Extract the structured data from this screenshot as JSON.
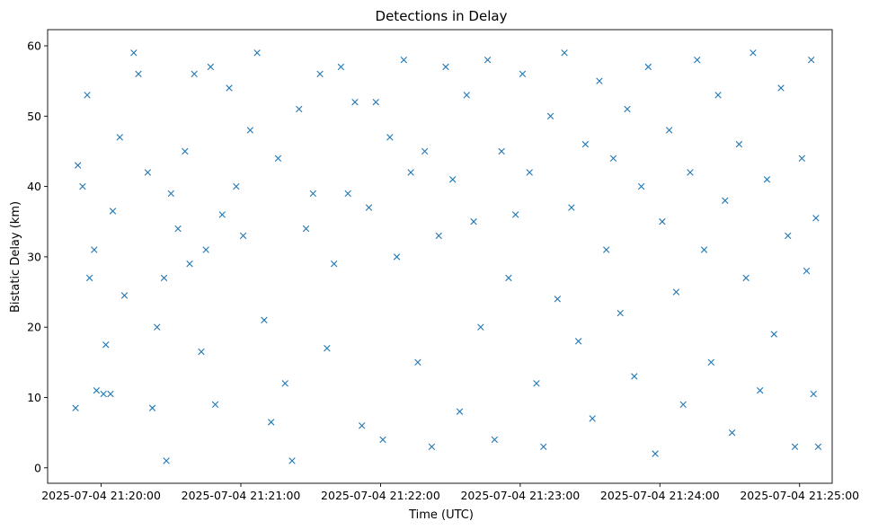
{
  "chart_data": {
    "type": "scatter",
    "title": "Detections in Delay",
    "xlabel": "Time (UTC)",
    "ylabel": "Bistatic Delay (km)",
    "marker": "x",
    "color": "#1f77b4",
    "grid": false,
    "xlim": [
      "2025-07-04 21:19:37",
      "2025-07-04 21:25:14"
    ],
    "ylim": [
      -2.2,
      62.3
    ],
    "x_ticks": [
      "2025-07-04 21:20:00",
      "2025-07-04 21:21:00",
      "2025-07-04 21:22:00",
      "2025-07-04 21:23:00",
      "2025-07-04 21:24:00",
      "2025-07-04 21:25:00"
    ],
    "y_ticks": [
      0,
      10,
      20,
      30,
      40,
      50,
      60
    ],
    "series": [
      {
        "points": [
          [
            "2025-07-04 21:19:50",
            43
          ],
          [
            "2025-07-04 21:19:52",
            40
          ],
          [
            "2025-07-04 21:19:54",
            53
          ],
          [
            "2025-07-04 21:19:55",
            27
          ],
          [
            "2025-07-04 21:19:57",
            31
          ],
          [
            "2025-07-04 21:19:49",
            8.5
          ],
          [
            "2025-07-04 21:19:58",
            11
          ],
          [
            "2025-07-04 21:20:01",
            10.5
          ],
          [
            "2025-07-04 21:20:04",
            10.5
          ],
          [
            "2025-07-04 21:20:02",
            17.5
          ],
          [
            "2025-07-04 21:20:05",
            36.5
          ],
          [
            "2025-07-04 21:20:08",
            47
          ],
          [
            "2025-07-04 21:20:10",
            24.5
          ],
          [
            "2025-07-04 21:20:14",
            59
          ],
          [
            "2025-07-04 21:20:16",
            56
          ],
          [
            "2025-07-04 21:20:20",
            42
          ],
          [
            "2025-07-04 21:20:22",
            8.5
          ],
          [
            "2025-07-04 21:20:24",
            20
          ],
          [
            "2025-07-04 21:20:27",
            27
          ],
          [
            "2025-07-04 21:20:28",
            1
          ],
          [
            "2025-07-04 21:20:30",
            39
          ],
          [
            "2025-07-04 21:20:33",
            34
          ],
          [
            "2025-07-04 21:20:36",
            45
          ],
          [
            "2025-07-04 21:20:38",
            29
          ],
          [
            "2025-07-04 21:20:40",
            56
          ],
          [
            "2025-07-04 21:20:43",
            16.5
          ],
          [
            "2025-07-04 21:20:45",
            31
          ],
          [
            "2025-07-04 21:20:47",
            57
          ],
          [
            "2025-07-04 21:20:49",
            9
          ],
          [
            "2025-07-04 21:20:52",
            36
          ],
          [
            "2025-07-04 21:20:55",
            54
          ],
          [
            "2025-07-04 21:20:58",
            40
          ],
          [
            "2025-07-04 21:21:01",
            33
          ],
          [
            "2025-07-04 21:21:04",
            48
          ],
          [
            "2025-07-04 21:21:07",
            59
          ],
          [
            "2025-07-04 21:21:10",
            21
          ],
          [
            "2025-07-04 21:21:13",
            6.5
          ],
          [
            "2025-07-04 21:21:16",
            44
          ],
          [
            "2025-07-04 21:21:19",
            12
          ],
          [
            "2025-07-04 21:21:22",
            1
          ],
          [
            "2025-07-04 21:21:25",
            51
          ],
          [
            "2025-07-04 21:21:28",
            34
          ],
          [
            "2025-07-04 21:21:31",
            39
          ],
          [
            "2025-07-04 21:21:34",
            56
          ],
          [
            "2025-07-04 21:21:37",
            17
          ],
          [
            "2025-07-04 21:21:40",
            29
          ],
          [
            "2025-07-04 21:21:43",
            57
          ],
          [
            "2025-07-04 21:21:46",
            39
          ],
          [
            "2025-07-04 21:21:49",
            52
          ],
          [
            "2025-07-04 21:21:52",
            6
          ],
          [
            "2025-07-04 21:21:55",
            37
          ],
          [
            "2025-07-04 21:21:58",
            52
          ],
          [
            "2025-07-04 21:22:01",
            4
          ],
          [
            "2025-07-04 21:22:04",
            47
          ],
          [
            "2025-07-04 21:22:07",
            30
          ],
          [
            "2025-07-04 21:22:10",
            58
          ],
          [
            "2025-07-04 21:22:13",
            42
          ],
          [
            "2025-07-04 21:22:16",
            15
          ],
          [
            "2025-07-04 21:22:19",
            45
          ],
          [
            "2025-07-04 21:22:22",
            3
          ],
          [
            "2025-07-04 21:22:25",
            33
          ],
          [
            "2025-07-04 21:22:28",
            57
          ],
          [
            "2025-07-04 21:22:31",
            41
          ],
          [
            "2025-07-04 21:22:34",
            8
          ],
          [
            "2025-07-04 21:22:37",
            53
          ],
          [
            "2025-07-04 21:22:40",
            35
          ],
          [
            "2025-07-04 21:22:43",
            20
          ],
          [
            "2025-07-04 21:22:46",
            58
          ],
          [
            "2025-07-04 21:22:49",
            4
          ],
          [
            "2025-07-04 21:22:52",
            45
          ],
          [
            "2025-07-04 21:22:55",
            27
          ],
          [
            "2025-07-04 21:22:58",
            36
          ],
          [
            "2025-07-04 21:23:01",
            56
          ],
          [
            "2025-07-04 21:23:04",
            42
          ],
          [
            "2025-07-04 21:23:07",
            12
          ],
          [
            "2025-07-04 21:23:10",
            3
          ],
          [
            "2025-07-04 21:23:13",
            50
          ],
          [
            "2025-07-04 21:23:16",
            24
          ],
          [
            "2025-07-04 21:23:19",
            59
          ],
          [
            "2025-07-04 21:23:22",
            37
          ],
          [
            "2025-07-04 21:23:25",
            18
          ],
          [
            "2025-07-04 21:23:28",
            46
          ],
          [
            "2025-07-04 21:23:31",
            7
          ],
          [
            "2025-07-04 21:23:34",
            55
          ],
          [
            "2025-07-04 21:23:37",
            31
          ],
          [
            "2025-07-04 21:23:40",
            44
          ],
          [
            "2025-07-04 21:23:43",
            22
          ],
          [
            "2025-07-04 21:23:46",
            51
          ],
          [
            "2025-07-04 21:23:49",
            13
          ],
          [
            "2025-07-04 21:23:52",
            40
          ],
          [
            "2025-07-04 21:23:55",
            57
          ],
          [
            "2025-07-04 21:23:58",
            2
          ],
          [
            "2025-07-04 21:24:01",
            35
          ],
          [
            "2025-07-04 21:24:04",
            48
          ],
          [
            "2025-07-04 21:24:07",
            25
          ],
          [
            "2025-07-04 21:24:10",
            9
          ],
          [
            "2025-07-04 21:24:13",
            42
          ],
          [
            "2025-07-04 21:24:16",
            58
          ],
          [
            "2025-07-04 21:24:19",
            31
          ],
          [
            "2025-07-04 21:24:22",
            15
          ],
          [
            "2025-07-04 21:24:25",
            53
          ],
          [
            "2025-07-04 21:24:28",
            38
          ],
          [
            "2025-07-04 21:24:31",
            5
          ],
          [
            "2025-07-04 21:24:34",
            46
          ],
          [
            "2025-07-04 21:24:37",
            27
          ],
          [
            "2025-07-04 21:24:40",
            59
          ],
          [
            "2025-07-04 21:24:43",
            11
          ],
          [
            "2025-07-04 21:24:46",
            41
          ],
          [
            "2025-07-04 21:24:49",
            19
          ],
          [
            "2025-07-04 21:24:52",
            54
          ],
          [
            "2025-07-04 21:24:55",
            33
          ],
          [
            "2025-07-04 21:24:58",
            3
          ],
          [
            "2025-07-04 21:25:01",
            44
          ],
          [
            "2025-07-04 21:25:03",
            28
          ],
          [
            "2025-07-04 21:25:05",
            58
          ],
          [
            "2025-07-04 21:25:06",
            10.5
          ],
          [
            "2025-07-04 21:25:07",
            35.5
          ],
          [
            "2025-07-04 21:25:08",
            3
          ]
        ]
      }
    ]
  }
}
